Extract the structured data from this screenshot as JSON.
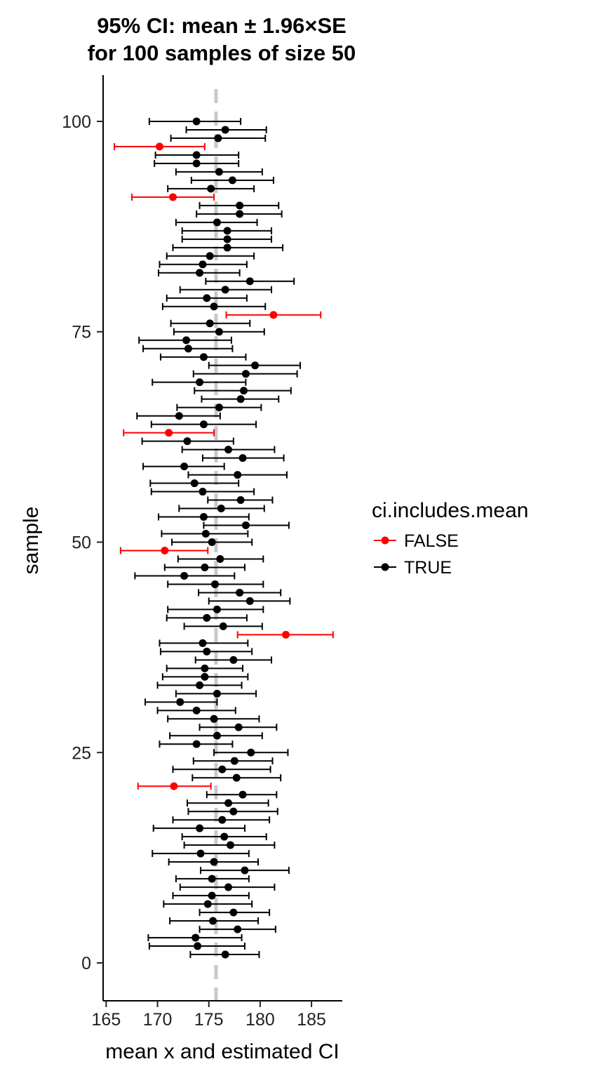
{
  "chart_data": {
    "type": "scatter",
    "title": [
      "95% CI: mean ± 1.96×SE",
      "for 100 samples of size 50"
    ],
    "xlabel": "mean x and estimated CI",
    "ylabel": "sample",
    "xlim": [
      164.7,
      188
    ],
    "ylim": [
      -4.5,
      105.5
    ],
    "x_ticks": [
      165,
      170,
      175,
      180,
      185
    ],
    "y_ticks": [
      0,
      25,
      50,
      75,
      100
    ],
    "reference_line": {
      "x": 175.7,
      "color": "#c8c8c8",
      "style": "dashed"
    },
    "grid": false,
    "legend": {
      "title": "ci.includes.mean",
      "placement": "right",
      "items": [
        {
          "label": "FALSE",
          "color": "#ff0000"
        },
        {
          "label": "TRUE",
          "color": "#000000"
        }
      ]
    },
    "colors": {
      "FALSE": "#ff0000",
      "TRUE": "#000000"
    },
    "points": [
      {
        "sample": 1,
        "mean": 176.6,
        "lo": 173.2,
        "hi": 179.9,
        "includes": true
      },
      {
        "sample": 2,
        "mean": 173.9,
        "lo": 169.2,
        "hi": 178.5,
        "includes": true
      },
      {
        "sample": 3,
        "mean": 173.7,
        "lo": 169.1,
        "hi": 178.2,
        "includes": true
      },
      {
        "sample": 4,
        "mean": 177.8,
        "lo": 174.1,
        "hi": 181.5,
        "includes": true
      },
      {
        "sample": 5,
        "mean": 175.4,
        "lo": 171.2,
        "hi": 179.8,
        "includes": true
      },
      {
        "sample": 6,
        "mean": 177.4,
        "lo": 174.1,
        "hi": 180.9,
        "includes": true
      },
      {
        "sample": 7,
        "mean": 174.9,
        "lo": 170.6,
        "hi": 179.2,
        "includes": true
      },
      {
        "sample": 8,
        "mean": 175.3,
        "lo": 171.5,
        "hi": 178.9,
        "includes": true
      },
      {
        "sample": 9,
        "mean": 176.9,
        "lo": 172.2,
        "hi": 181.4,
        "includes": true
      },
      {
        "sample": 10,
        "mean": 175.3,
        "lo": 171.8,
        "hi": 178.9,
        "includes": true
      },
      {
        "sample": 11,
        "mean": 178.5,
        "lo": 174.2,
        "hi": 182.8,
        "includes": true
      },
      {
        "sample": 12,
        "mean": 175.5,
        "lo": 171.1,
        "hi": 179.8,
        "includes": true
      },
      {
        "sample": 13,
        "mean": 174.2,
        "lo": 169.5,
        "hi": 178.9,
        "includes": true
      },
      {
        "sample": 14,
        "mean": 177.1,
        "lo": 172.6,
        "hi": 181.4,
        "includes": true
      },
      {
        "sample": 15,
        "mean": 176.5,
        "lo": 172.4,
        "hi": 180.6,
        "includes": true
      },
      {
        "sample": 16,
        "mean": 174.1,
        "lo": 169.6,
        "hi": 178.5,
        "includes": true
      },
      {
        "sample": 17,
        "mean": 176.3,
        "lo": 171.5,
        "hi": 180.9,
        "includes": true
      },
      {
        "sample": 18,
        "mean": 177.4,
        "lo": 173.0,
        "hi": 181.7,
        "includes": true
      },
      {
        "sample": 19,
        "mean": 176.9,
        "lo": 172.9,
        "hi": 180.8,
        "includes": true
      },
      {
        "sample": 20,
        "mean": 178.3,
        "lo": 174.8,
        "hi": 181.6,
        "includes": true
      },
      {
        "sample": 21,
        "mean": 171.6,
        "lo": 168.1,
        "hi": 175.2,
        "includes": false
      },
      {
        "sample": 22,
        "mean": 177.7,
        "lo": 173.4,
        "hi": 182.0,
        "includes": true
      },
      {
        "sample": 23,
        "mean": 176.3,
        "lo": 171.5,
        "hi": 181.0,
        "includes": true
      },
      {
        "sample": 24,
        "mean": 177.5,
        "lo": 173.5,
        "hi": 181.2,
        "includes": true
      },
      {
        "sample": 25,
        "mean": 179.1,
        "lo": 175.5,
        "hi": 182.7,
        "includes": true
      },
      {
        "sample": 26,
        "mean": 173.8,
        "lo": 170.2,
        "hi": 177.3,
        "includes": true
      },
      {
        "sample": 27,
        "mean": 175.8,
        "lo": 171.2,
        "hi": 180.2,
        "includes": true
      },
      {
        "sample": 28,
        "mean": 177.9,
        "lo": 174.1,
        "hi": 181.6,
        "includes": true
      },
      {
        "sample": 29,
        "mean": 175.5,
        "lo": 171.0,
        "hi": 179.9,
        "includes": true
      },
      {
        "sample": 30,
        "mean": 173.8,
        "lo": 170.0,
        "hi": 177.6,
        "includes": true
      },
      {
        "sample": 31,
        "mean": 172.2,
        "lo": 168.8,
        "hi": 175.8,
        "includes": true
      },
      {
        "sample": 32,
        "mean": 175.8,
        "lo": 171.8,
        "hi": 179.6,
        "includes": true
      },
      {
        "sample": 33,
        "mean": 174.1,
        "lo": 170.0,
        "hi": 178.2,
        "includes": true
      },
      {
        "sample": 34,
        "mean": 174.6,
        "lo": 170.5,
        "hi": 178.8,
        "includes": true
      },
      {
        "sample": 35,
        "mean": 174.6,
        "lo": 170.9,
        "hi": 178.3,
        "includes": true
      },
      {
        "sample": 36,
        "mean": 177.4,
        "lo": 173.7,
        "hi": 181.1,
        "includes": true
      },
      {
        "sample": 37,
        "mean": 174.8,
        "lo": 170.3,
        "hi": 179.2,
        "includes": true
      },
      {
        "sample": 38,
        "mean": 174.4,
        "lo": 170.2,
        "hi": 178.8,
        "includes": true
      },
      {
        "sample": 39,
        "mean": 182.5,
        "lo": 177.8,
        "hi": 187.1,
        "includes": false
      },
      {
        "sample": 40,
        "mean": 176.4,
        "lo": 172.6,
        "hi": 180.2,
        "includes": true
      },
      {
        "sample": 41,
        "mean": 174.8,
        "lo": 170.9,
        "hi": 178.7,
        "includes": true
      },
      {
        "sample": 42,
        "mean": 175.8,
        "lo": 171.0,
        "hi": 180.3,
        "includes": true
      },
      {
        "sample": 43,
        "mean": 179.0,
        "lo": 175.0,
        "hi": 182.9,
        "includes": true
      },
      {
        "sample": 44,
        "mean": 178.0,
        "lo": 174.0,
        "hi": 182.0,
        "includes": true
      },
      {
        "sample": 45,
        "mean": 175.6,
        "lo": 171.0,
        "hi": 180.3,
        "includes": true
      },
      {
        "sample": 46,
        "mean": 172.6,
        "lo": 167.8,
        "hi": 177.5,
        "includes": true
      },
      {
        "sample": 47,
        "mean": 174.6,
        "lo": 170.7,
        "hi": 178.5,
        "includes": true
      },
      {
        "sample": 48,
        "mean": 176.1,
        "lo": 172.0,
        "hi": 180.3,
        "includes": true
      },
      {
        "sample": 49,
        "mean": 170.7,
        "lo": 166.4,
        "hi": 174.9,
        "includes": false
      },
      {
        "sample": 50,
        "mean": 175.3,
        "lo": 171.4,
        "hi": 179.2,
        "includes": true
      },
      {
        "sample": 51,
        "mean": 174.7,
        "lo": 170.4,
        "hi": 178.8,
        "includes": true
      },
      {
        "sample": 52,
        "mean": 178.6,
        "lo": 174.5,
        "hi": 182.8,
        "includes": true
      },
      {
        "sample": 53,
        "mean": 174.5,
        "lo": 170.1,
        "hi": 178.9,
        "includes": true
      },
      {
        "sample": 54,
        "mean": 176.2,
        "lo": 172.1,
        "hi": 180.4,
        "includes": true
      },
      {
        "sample": 55,
        "mean": 178.1,
        "lo": 174.9,
        "hi": 181.2,
        "includes": true
      },
      {
        "sample": 56,
        "mean": 174.4,
        "lo": 169.4,
        "hi": 179.4,
        "includes": true
      },
      {
        "sample": 57,
        "mean": 173.6,
        "lo": 169.3,
        "hi": 177.9,
        "includes": true
      },
      {
        "sample": 58,
        "mean": 177.8,
        "lo": 173.0,
        "hi": 182.6,
        "includes": true
      },
      {
        "sample": 59,
        "mean": 172.6,
        "lo": 168.6,
        "hi": 176.5,
        "includes": true
      },
      {
        "sample": 60,
        "mean": 178.3,
        "lo": 174.4,
        "hi": 182.3,
        "includes": true
      },
      {
        "sample": 61,
        "mean": 176.9,
        "lo": 172.4,
        "hi": 181.4,
        "includes": true
      },
      {
        "sample": 62,
        "mean": 172.9,
        "lo": 168.5,
        "hi": 177.4,
        "includes": true
      },
      {
        "sample": 63,
        "mean": 171.1,
        "lo": 166.7,
        "hi": 175.5,
        "includes": false
      },
      {
        "sample": 64,
        "mean": 174.5,
        "lo": 169.4,
        "hi": 179.6,
        "includes": true
      },
      {
        "sample": 65,
        "mean": 172.1,
        "lo": 168.0,
        "hi": 176.1,
        "includes": true
      },
      {
        "sample": 66,
        "mean": 176.0,
        "lo": 171.9,
        "hi": 180.1,
        "includes": true
      },
      {
        "sample": 67,
        "mean": 178.1,
        "lo": 174.3,
        "hi": 181.8,
        "includes": true
      },
      {
        "sample": 68,
        "mean": 178.4,
        "lo": 173.6,
        "hi": 183.0,
        "includes": true
      },
      {
        "sample": 69,
        "mean": 174.1,
        "lo": 169.5,
        "hi": 178.6,
        "includes": true
      },
      {
        "sample": 70,
        "mean": 178.6,
        "lo": 173.5,
        "hi": 183.6,
        "includes": true
      },
      {
        "sample": 71,
        "mean": 179.5,
        "lo": 175.0,
        "hi": 183.9,
        "includes": true
      },
      {
        "sample": 72,
        "mean": 174.5,
        "lo": 170.3,
        "hi": 178.6,
        "includes": true
      },
      {
        "sample": 73,
        "mean": 173.0,
        "lo": 168.6,
        "hi": 177.3,
        "includes": true
      },
      {
        "sample": 74,
        "mean": 172.8,
        "lo": 168.2,
        "hi": 177.2,
        "includes": true
      },
      {
        "sample": 75,
        "mean": 176.0,
        "lo": 171.6,
        "hi": 180.4,
        "includes": true
      },
      {
        "sample": 76,
        "mean": 175.1,
        "lo": 171.3,
        "hi": 179.0,
        "includes": true
      },
      {
        "sample": 77,
        "mean": 181.3,
        "lo": 176.7,
        "hi": 185.9,
        "includes": false
      },
      {
        "sample": 78,
        "mean": 175.5,
        "lo": 170.5,
        "hi": 180.5,
        "includes": true
      },
      {
        "sample": 79,
        "mean": 174.8,
        "lo": 170.9,
        "hi": 178.7,
        "includes": true
      },
      {
        "sample": 80,
        "mean": 176.6,
        "lo": 172.2,
        "hi": 181.1,
        "includes": true
      },
      {
        "sample": 81,
        "mean": 179.0,
        "lo": 174.7,
        "hi": 183.3,
        "includes": true
      },
      {
        "sample": 82,
        "mean": 174.1,
        "lo": 170.1,
        "hi": 178.0,
        "includes": true
      },
      {
        "sample": 83,
        "mean": 174.4,
        "lo": 170.2,
        "hi": 178.7,
        "includes": true
      },
      {
        "sample": 84,
        "mean": 175.1,
        "lo": 170.9,
        "hi": 179.4,
        "includes": true
      },
      {
        "sample": 85,
        "mean": 176.8,
        "lo": 171.5,
        "hi": 182.2,
        "includes": true
      },
      {
        "sample": 86,
        "mean": 176.8,
        "lo": 172.4,
        "hi": 181.1,
        "includes": true
      },
      {
        "sample": 87,
        "mean": 176.8,
        "lo": 172.4,
        "hi": 181.1,
        "includes": true
      },
      {
        "sample": 88,
        "mean": 175.8,
        "lo": 171.8,
        "hi": 179.7,
        "includes": true
      },
      {
        "sample": 89,
        "mean": 178.0,
        "lo": 173.8,
        "hi": 182.1,
        "includes": true
      },
      {
        "sample": 90,
        "mean": 178.0,
        "lo": 174.1,
        "hi": 181.8,
        "includes": true
      },
      {
        "sample": 91,
        "mean": 171.5,
        "lo": 167.5,
        "hi": 175.5,
        "includes": false
      },
      {
        "sample": 92,
        "mean": 175.2,
        "lo": 171.0,
        "hi": 179.4,
        "includes": true
      },
      {
        "sample": 93,
        "mean": 177.3,
        "lo": 173.3,
        "hi": 181.3,
        "includes": true
      },
      {
        "sample": 94,
        "mean": 176.0,
        "lo": 171.8,
        "hi": 180.2,
        "includes": true
      },
      {
        "sample": 95,
        "mean": 173.8,
        "lo": 169.7,
        "hi": 177.9,
        "includes": true
      },
      {
        "sample": 96,
        "mean": 173.8,
        "lo": 169.8,
        "hi": 177.9,
        "includes": true
      },
      {
        "sample": 97,
        "mean": 170.2,
        "lo": 165.8,
        "hi": 174.6,
        "includes": false
      },
      {
        "sample": 98,
        "mean": 175.9,
        "lo": 171.3,
        "hi": 180.5,
        "includes": true
      },
      {
        "sample": 99,
        "mean": 176.6,
        "lo": 172.8,
        "hi": 180.6,
        "includes": true
      },
      {
        "sample": 100,
        "mean": 173.8,
        "lo": 169.2,
        "hi": 178.1,
        "includes": true
      }
    ]
  }
}
